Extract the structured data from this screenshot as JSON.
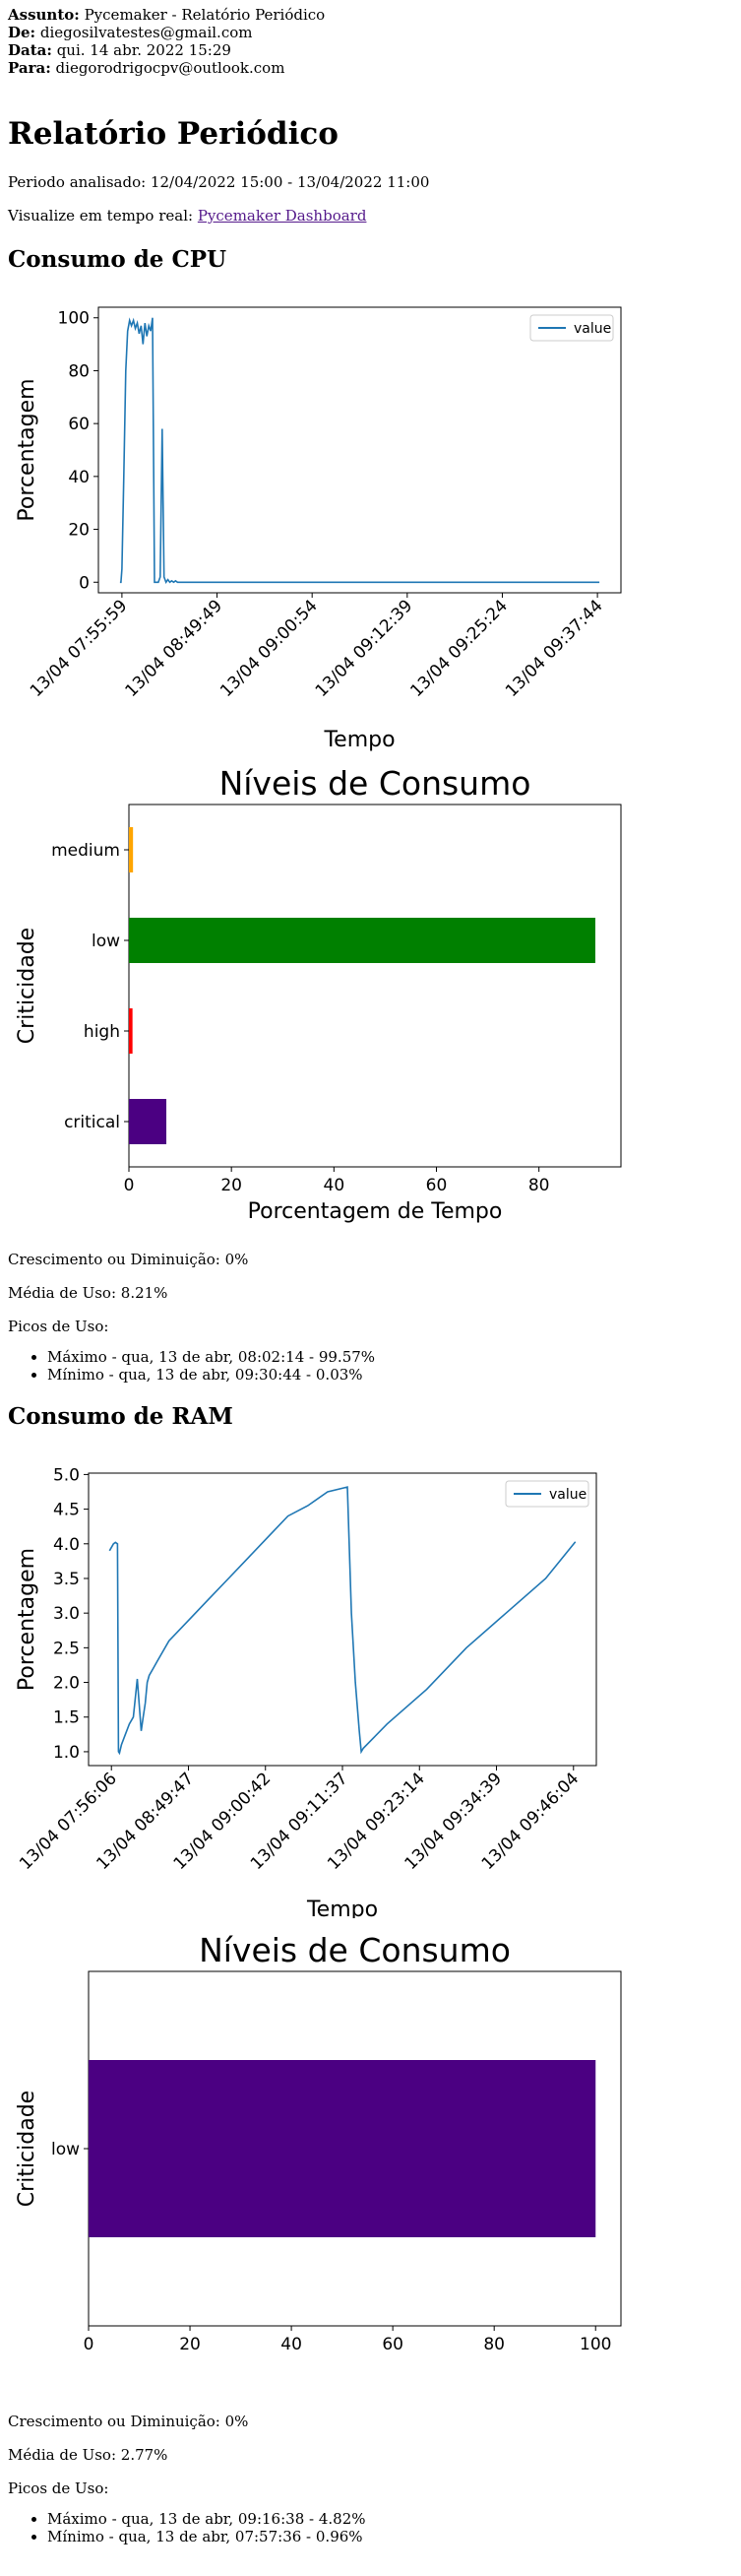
{
  "email": {
    "subject_label": "Assunto:",
    "subject": "Pycemaker - Relatório Periódico",
    "from_label": "De:",
    "from": "diegosilvatestes@gmail.com",
    "date_label": "Data:",
    "date": "qui. 14 abr. 2022 15:29",
    "to_label": "Para:",
    "to": "diegorodrigocpv@outlook.com"
  },
  "report": {
    "title": "Relatório Periódico",
    "period": "Periodo analisado: 12/04/2022 15:00 - 13/04/2022 11:00",
    "realtime_prefix": "Visualize em tempo real:",
    "dashboard_link": "Pycemaker Dashboard"
  },
  "cpu": {
    "heading": "Consumo de CPU",
    "growth": "Crescimento ou Diminuição: 0%",
    "average": "Média de Uso: 8.21%",
    "peaks_label": "Picos de Uso:",
    "peaks": [
      "Máximo - qua, 13 de abr, 08:02:14 - 99.57%",
      "Mínimo - qua, 13 de abr, 09:30:44 - 0.03%"
    ]
  },
  "ram": {
    "heading": "Consumo de RAM",
    "growth": "Crescimento ou Diminuição: 0%",
    "average": "Média de Uso: 2.77%",
    "peaks_label": "Picos de Uso:",
    "peaks": [
      "Máximo - qua, 13 de abr, 09:16:38 - 4.82%",
      "Mínimo - qua, 13 de abr, 07:57:36 - 0.96%"
    ]
  },
  "colors": {
    "line": "#1f77b4",
    "medium": "#ffa500",
    "low": "#008000",
    "high": "#ff0000",
    "critical": "#4b0082",
    "link": "#551A8B"
  },
  "chart_data": [
    {
      "type": "line",
      "id": "cpu_line",
      "title": "",
      "xlabel": "Tempo",
      "ylabel": "Porcentagem",
      "legend": "top-right",
      "series": [
        {
          "name": "value"
        }
      ],
      "x": [
        0,
        0.5,
        1,
        2,
        3,
        4,
        5,
        6,
        7,
        8,
        9,
        10,
        11,
        12,
        13,
        14,
        15,
        16,
        17,
        18,
        19,
        20,
        21,
        22,
        23,
        24,
        25,
        26,
        27,
        28,
        29,
        30,
        32,
        34,
        36,
        38,
        40,
        60,
        80,
        100,
        120,
        140,
        160,
        180,
        200,
        230,
        250
      ],
      "values": [
        0,
        0,
        5,
        40,
        80,
        95,
        99,
        97,
        99,
        96,
        98,
        94,
        97,
        90,
        98,
        93,
        97,
        95,
        100,
        0,
        0,
        0,
        2,
        58,
        2,
        0,
        1,
        0,
        0.5,
        0,
        0.5,
        0,
        0,
        0,
        0,
        0,
        0,
        0,
        0,
        0,
        0,
        0,
        0,
        0,
        0,
        0,
        0
      ],
      "x_tick_labels": [
        "13/04 07:55:59",
        "13/04 08:49:49",
        "13/04 09:00:54",
        "13/04 09:12:39",
        "13/04 09:25:24",
        "13/04 09:37:44"
      ],
      "y_ticks": [
        0,
        20,
        40,
        60,
        80,
        100
      ],
      "ylim": [
        -4,
        104
      ]
    },
    {
      "type": "bar",
      "id": "cpu_levels",
      "orientation": "horizontal",
      "title": "Níveis de Consumo",
      "xlabel": "Porcentagem de Tempo",
      "ylabel": "Criticidade",
      "categories": [
        "medium",
        "low",
        "high",
        "critical"
      ],
      "values": [
        0.8,
        91,
        0.7,
        7.3
      ],
      "x_ticks": [
        0,
        20,
        40,
        60,
        80
      ],
      "xlim": [
        0,
        96
      ]
    },
    {
      "type": "line",
      "id": "ram_line",
      "title": "",
      "xlabel": "Tempo",
      "ylabel": "Porcentagem",
      "legend": "top-right",
      "series": [
        {
          "name": "value"
        }
      ],
      "x": [
        0,
        2,
        3,
        4,
        4.5,
        5,
        6,
        8,
        10,
        12,
        14,
        16,
        17,
        18,
        19,
        20,
        22,
        24,
        30,
        40,
        50,
        60,
        70,
        80,
        90,
        100,
        110,
        120,
        122,
        124,
        126,
        127,
        128,
        140,
        160,
        180,
        200,
        220,
        235
      ],
      "values": [
        3.9,
        4.0,
        4.02,
        4.0,
        1.0,
        0.98,
        1.1,
        1.25,
        1.4,
        1.5,
        2.05,
        1.3,
        1.5,
        1.7,
        2.0,
        2.1,
        2.2,
        2.3,
        2.6,
        2.9,
        3.2,
        3.5,
        3.8,
        4.1,
        4.4,
        4.55,
        4.75,
        4.82,
        3.0,
        2.0,
        1.3,
        1.0,
        1.05,
        1.4,
        1.9,
        2.5,
        3.0,
        3.5,
        4.03
      ],
      "x_tick_labels": [
        "13/04 07:56:06",
        "13/04 08:49:47",
        "13/04 09:00:42",
        "13/04 09:11:37",
        "13/04 09:23:14",
        "13/04 09:34:39",
        "13/04 09:46:04"
      ],
      "y_ticks": [
        1.0,
        1.5,
        2.0,
        2.5,
        3.0,
        3.5,
        4.0,
        4.5,
        5.0
      ],
      "ylim": [
        0.8,
        5.02
      ]
    },
    {
      "type": "bar",
      "id": "ram_levels",
      "orientation": "horizontal",
      "title": "Níveis de Consumo",
      "xlabel": "Porcentagem de Tempo",
      "ylabel": "Criticidade",
      "categories": [
        "low"
      ],
      "values": [
        100
      ],
      "x_ticks": [
        0,
        20,
        40,
        60,
        80,
        100
      ],
      "xlim": [
        0,
        105
      ]
    }
  ]
}
